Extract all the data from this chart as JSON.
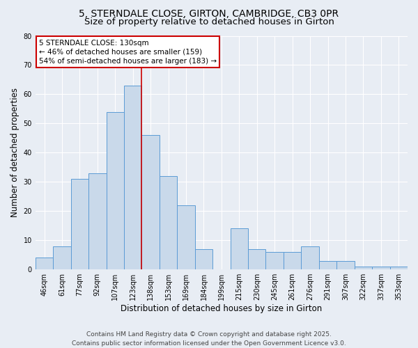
{
  "title_line1": "5, STERNDALE CLOSE, GIRTON, CAMBRIDGE, CB3 0PR",
  "title_line2": "Size of property relative to detached houses in Girton",
  "xlabel": "Distribution of detached houses by size in Girton",
  "ylabel": "Number of detached properties",
  "bin_labels": [
    "46sqm",
    "61sqm",
    "77sqm",
    "92sqm",
    "107sqm",
    "123sqm",
    "138sqm",
    "153sqm",
    "169sqm",
    "184sqm",
    "199sqm",
    "215sqm",
    "230sqm",
    "245sqm",
    "261sqm",
    "276sqm",
    "291sqm",
    "307sqm",
    "322sqm",
    "337sqm",
    "353sqm"
  ],
  "bar_heights": [
    4,
    8,
    31,
    33,
    54,
    63,
    46,
    32,
    22,
    7,
    0,
    14,
    7,
    6,
    6,
    8,
    3,
    3,
    1,
    1,
    1
  ],
  "bar_color": "#c9d9ea",
  "bar_edge_color": "#5b9bd5",
  "vline_x_index": 5.5,
  "annotation_text_line1": "5 STERNDALE CLOSE: 130sqm",
  "annotation_text_line2": "← 46% of detached houses are smaller (159)",
  "annotation_text_line3": "54% of semi-detached houses are larger (183) →",
  "annotation_box_facecolor": "#ffffff",
  "annotation_box_edgecolor": "#cc0000",
  "vline_color": "#cc0000",
  "ylim": [
    0,
    80
  ],
  "yticks": [
    0,
    10,
    20,
    30,
    40,
    50,
    60,
    70,
    80
  ],
  "footer_line1": "Contains HM Land Registry data © Crown copyright and database right 2025.",
  "footer_line2": "Contains public sector information licensed under the Open Government Licence v3.0.",
  "background_color": "#e8edf4",
  "grid_color": "#ffffff",
  "title1_fontsize": 10,
  "title2_fontsize": 9.5,
  "axis_label_fontsize": 8.5,
  "tick_fontsize": 7,
  "annotation_fontsize": 7.5,
  "footer_fontsize": 6.5
}
